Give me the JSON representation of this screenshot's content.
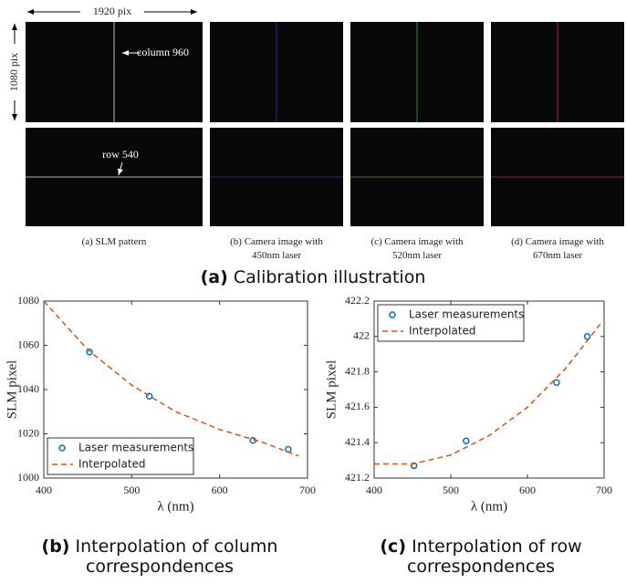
{
  "figure": {
    "width_label": "1920 pix",
    "height_label": "1080 pix",
    "column_note": "column 960",
    "row_note": "row 540",
    "captions": [
      "(a) SLM pattern",
      "(b) Camera image with 450nm laser",
      "(c) Camera image with 520nm laser",
      "(d) Camera image with 670nm laser"
    ],
    "subfigures": [
      {
        "label": "(a)",
        "title": "Calibration illustration"
      },
      {
        "label": "(b)",
        "title": "Interpolation of column correspondences"
      },
      {
        "label": "(c)",
        "title": "Interpolation of row correspondences"
      }
    ]
  },
  "chart_data": [
    {
      "type": "line",
      "xlabel": "λ (nm)",
      "ylabel": "SLM pixel",
      "xlim": [
        400,
        700
      ],
      "xticks": [
        400,
        500,
        600,
        700
      ],
      "ylim": [
        1000,
        1080
      ],
      "yticks": [
        1000,
        1020,
        1040,
        1060,
        1080
      ],
      "legend": "lower left",
      "series": [
        {
          "name": "Laser measurements",
          "color": "#0072bd",
          "marker": "circle",
          "x": [
            452,
            520,
            638,
            678
          ],
          "values": [
            1057,
            1037,
            1017,
            1013
          ]
        },
        {
          "name": "Interpolated",
          "color": "#d95319",
          "dashed": true,
          "x": [
            400,
            450,
            500,
            550,
            600,
            650,
            690
          ],
          "values": [
            1080,
            1058,
            1042,
            1030,
            1022,
            1016,
            1010
          ]
        }
      ]
    },
    {
      "type": "line",
      "xlabel": "λ (nm)",
      "ylabel": "SLM pixel",
      "xlim": [
        400,
        700
      ],
      "xticks": [
        400,
        500,
        600,
        700
      ],
      "ylim": [
        421.2,
        422.2
      ],
      "yticks": [
        421.2,
        421.4,
        421.6,
        421.8,
        422,
        422.2
      ],
      "legend": "upper left",
      "series": [
        {
          "name": "Laser measurements",
          "color": "#0072bd",
          "marker": "circle",
          "x": [
            452,
            520,
            638,
            678
          ],
          "values": [
            421.27,
            421.41,
            421.74,
            422.0
          ]
        },
        {
          "name": "Interpolated",
          "color": "#d95319",
          "dashed": true,
          "x": [
            400,
            450,
            500,
            550,
            600,
            650,
            695
          ],
          "values": [
            421.28,
            421.28,
            421.33,
            421.44,
            421.6,
            421.82,
            422.07
          ]
        }
      ]
    }
  ]
}
